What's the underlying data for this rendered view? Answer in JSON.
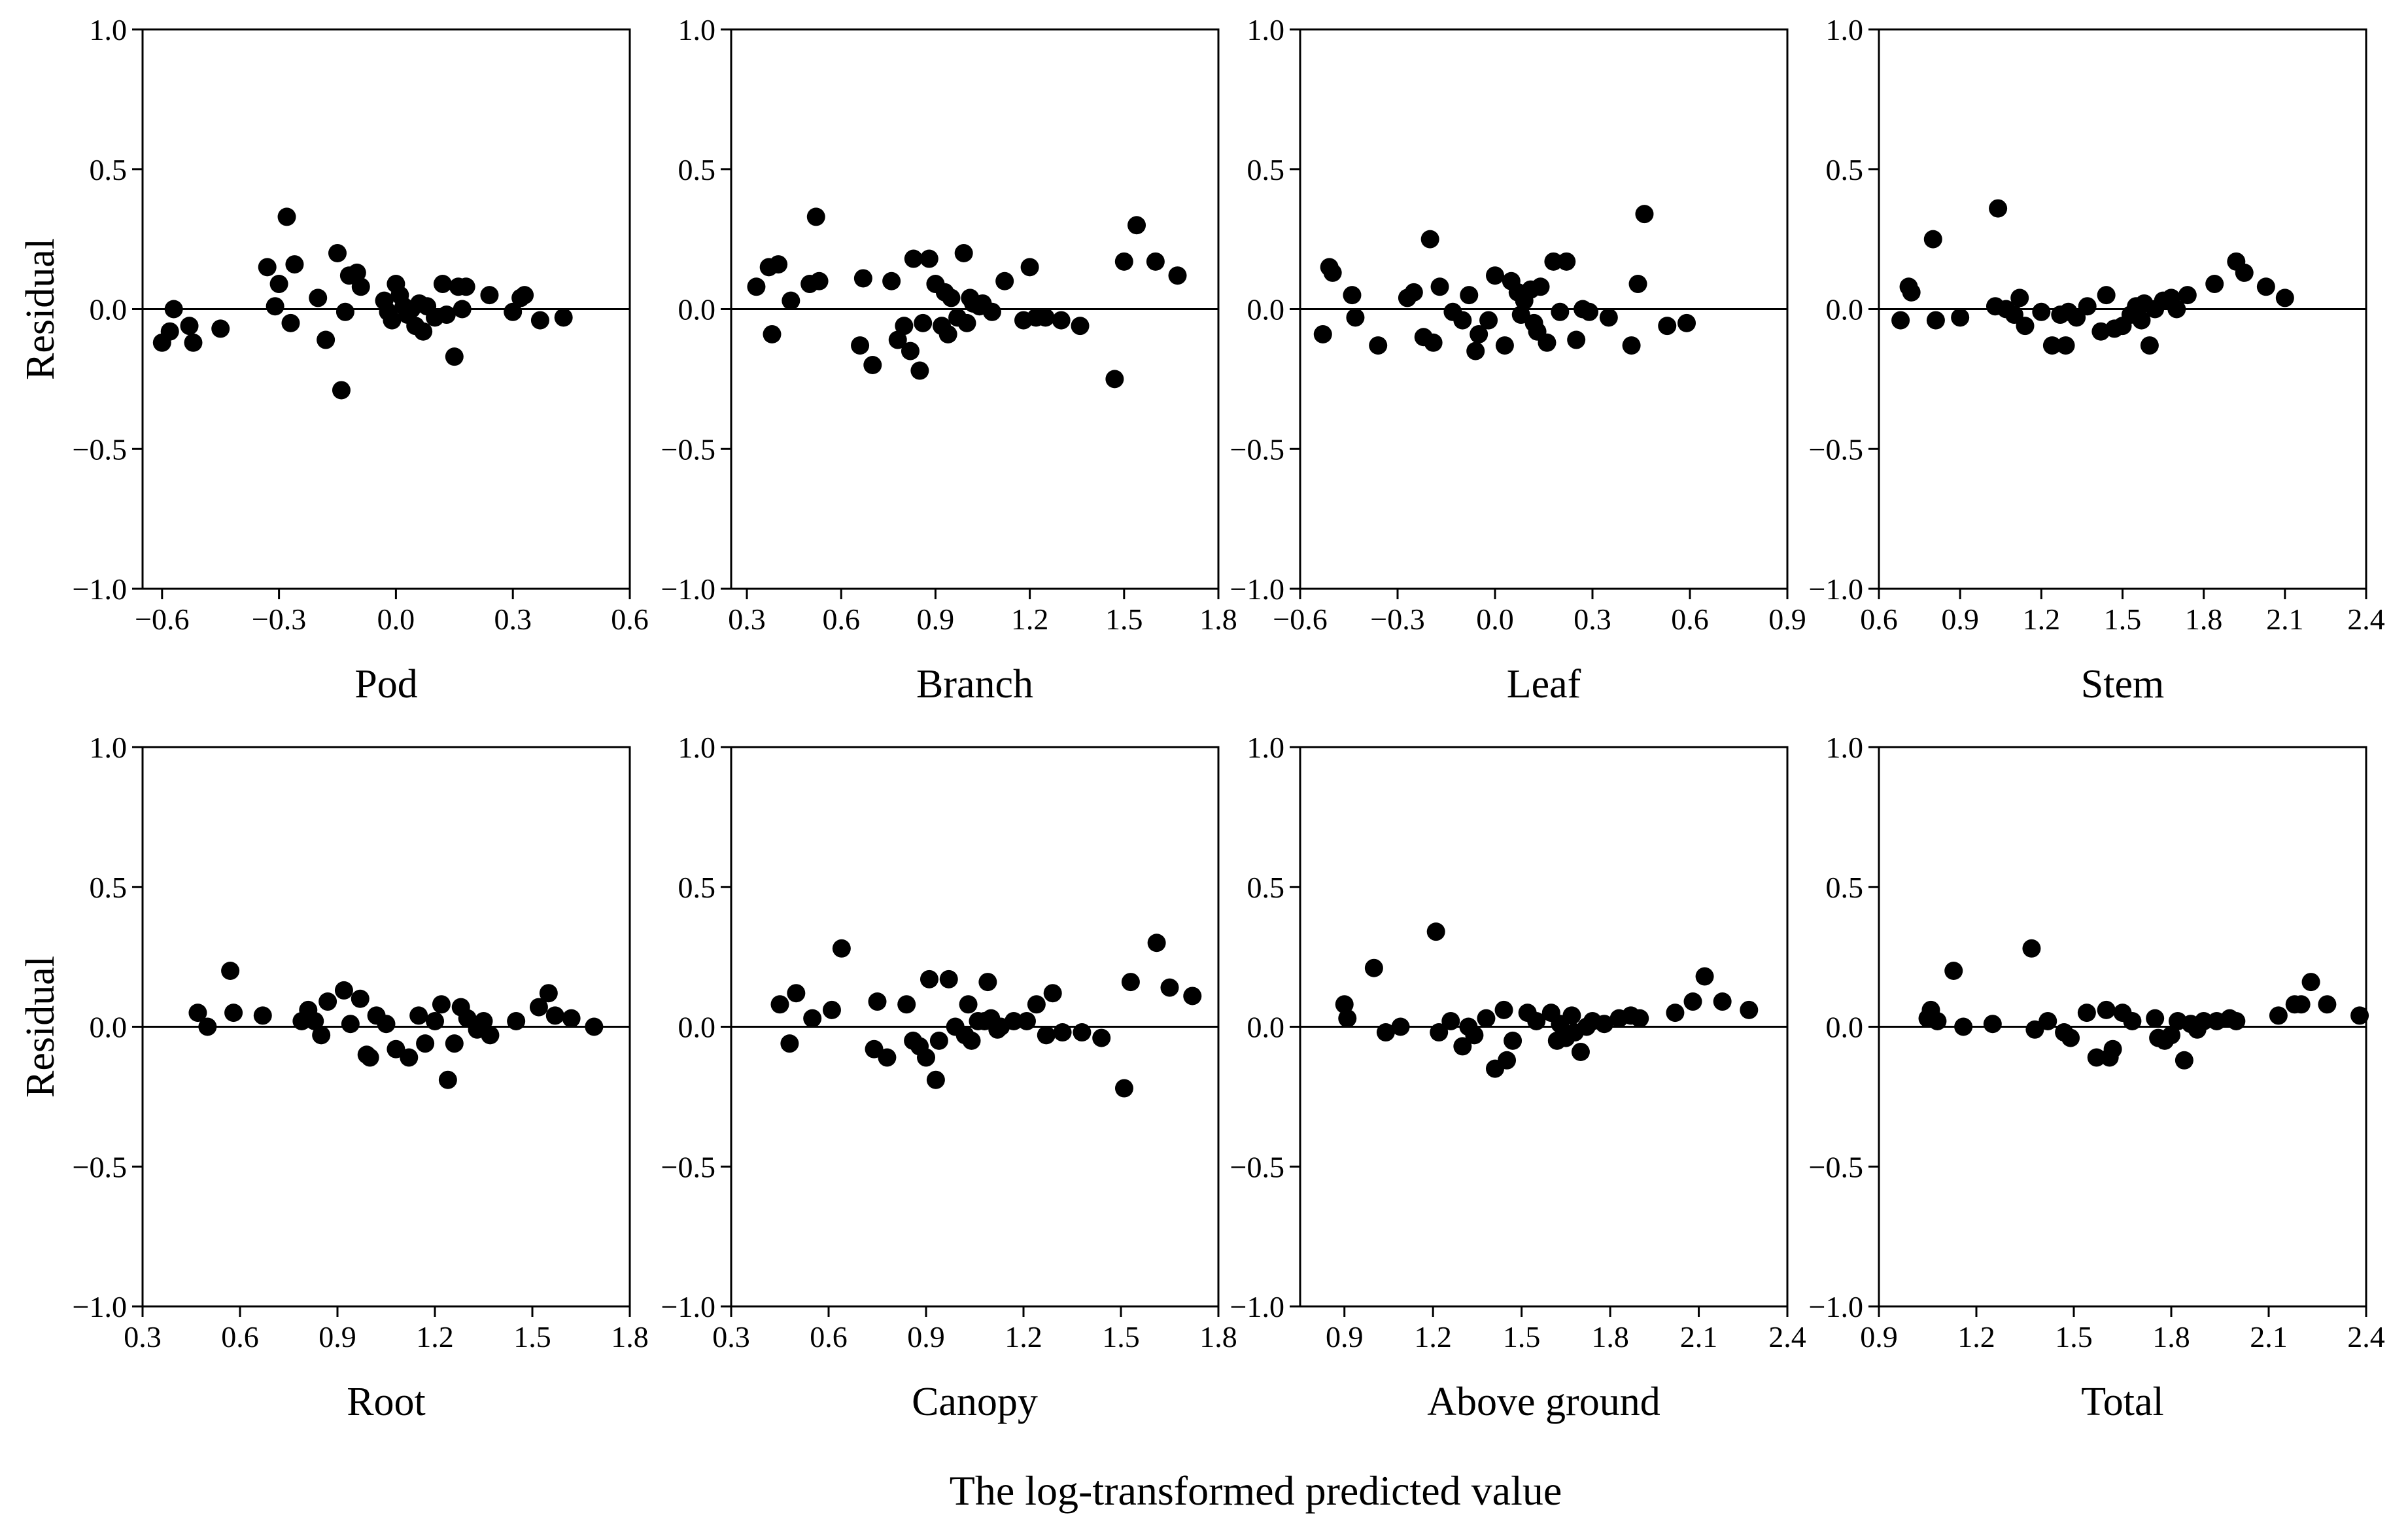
{
  "figure": {
    "xlabel": "The log-transformed predicted value",
    "ylabel": "Residual"
  },
  "chart_data": [
    {
      "type": "scatter",
      "name": "Pod",
      "title": "",
      "xlabel": "Pod",
      "ylabel": "Residual",
      "xlim": [
        -0.65,
        0.6
      ],
      "ylim": [
        -1.0,
        1.0
      ],
      "xticks": [
        -0.6,
        -0.3,
        0.0,
        0.3,
        0.6
      ],
      "xtick_labels": [
        "−0.6",
        "−0.3",
        "0.0",
        "0.3",
        "0.6"
      ],
      "yticks": [
        -1.0,
        -0.5,
        0.0,
        0.5,
        1.0
      ],
      "ytick_labels": [
        "−1.0",
        "−0.5",
        "0.0",
        "0.5",
        "1.0"
      ],
      "reference_line": 0,
      "x": [
        -0.6,
        -0.58,
        -0.57,
        -0.53,
        -0.52,
        -0.45,
        -0.33,
        -0.31,
        -0.3,
        -0.28,
        -0.27,
        -0.26,
        -0.2,
        -0.18,
        -0.15,
        -0.14,
        -0.13,
        -0.12,
        -0.1,
        -0.09,
        -0.03,
        -0.02,
        -0.01,
        0.0,
        0.01,
        0.02,
        0.03,
        0.04,
        0.05,
        0.06,
        0.07,
        0.08,
        0.1,
        0.12,
        0.13,
        0.15,
        0.16,
        0.17,
        0.18,
        0.24,
        0.3,
        0.32,
        0.33,
        0.37,
        0.43
      ],
      "y": [
        -0.12,
        -0.08,
        0.0,
        -0.06,
        -0.12,
        -0.07,
        0.15,
        0.01,
        0.09,
        0.33,
        -0.05,
        0.16,
        0.04,
        -0.11,
        0.2,
        -0.29,
        -0.01,
        0.12,
        0.13,
        0.08,
        0.03,
        -0.01,
        -0.04,
        0.09,
        0.05,
        0.01,
        -0.02,
        0.0,
        -0.06,
        0.02,
        -0.08,
        0.01,
        -0.03,
        0.09,
        -0.02,
        -0.17,
        0.08,
        0.0,
        0.08,
        0.05,
        -0.01,
        0.04,
        0.05,
        -0.04,
        -0.03
      ]
    },
    {
      "type": "scatter",
      "name": "Branch",
      "title": "",
      "xlabel": "Branch",
      "ylabel": "",
      "xlim": [
        0.25,
        1.8
      ],
      "ylim": [
        -1.0,
        1.0
      ],
      "xticks": [
        0.3,
        0.6,
        0.9,
        1.2,
        1.5,
        1.8
      ],
      "xtick_labels": [
        "0.3",
        "0.6",
        "0.9",
        "1.2",
        "1.5",
        "1.8"
      ],
      "yticks": [
        -1.0,
        -0.5,
        0.0,
        0.5,
        1.0
      ],
      "ytick_labels": [
        "−1.0",
        "−0.5",
        "0.0",
        "0.5",
        "1.0"
      ],
      "reference_line": 0,
      "x": [
        0.33,
        0.37,
        0.38,
        0.4,
        0.44,
        0.5,
        0.52,
        0.53,
        0.66,
        0.67,
        0.7,
        0.76,
        0.78,
        0.8,
        0.82,
        0.83,
        0.85,
        0.86,
        0.88,
        0.9,
        0.92,
        0.93,
        0.94,
        0.95,
        0.97,
        0.99,
        1.0,
        1.01,
        1.02,
        1.04,
        1.05,
        1.08,
        1.12,
        1.18,
        1.2,
        1.22,
        1.25,
        1.3,
        1.36,
        1.47,
        1.5,
        1.54,
        1.6,
        1.67
      ],
      "y": [
        0.08,
        0.15,
        -0.09,
        0.16,
        0.03,
        0.09,
        0.33,
        0.1,
        -0.13,
        0.11,
        -0.2,
        0.1,
        -0.11,
        -0.06,
        -0.15,
        0.18,
        -0.22,
        -0.05,
        0.18,
        0.09,
        -0.06,
        0.06,
        -0.09,
        0.04,
        -0.03,
        0.2,
        -0.05,
        0.04,
        0.02,
        0.01,
        0.02,
        -0.01,
        0.1,
        -0.04,
        0.15,
        -0.03,
        -0.03,
        -0.04,
        -0.06,
        -0.25,
        0.17,
        0.3,
        0.17,
        0.12
      ]
    },
    {
      "type": "scatter",
      "name": "Leaf",
      "title": "",
      "xlabel": "Leaf",
      "ylabel": "",
      "xlim": [
        -0.6,
        0.9
      ],
      "ylim": [
        -1.0,
        1.0
      ],
      "xticks": [
        -0.6,
        -0.3,
        0.0,
        0.3,
        0.6,
        0.9
      ],
      "xtick_labels": [
        "−0.6",
        "−0.3",
        "0.0",
        "0.3",
        "0.6",
        "0.9"
      ],
      "yticks": [
        -1.0,
        -0.5,
        0.0,
        0.5,
        1.0
      ],
      "ytick_labels": [
        "−1.0",
        "−0.5",
        "0.0",
        "0.5",
        "1.0"
      ],
      "reference_line": 0,
      "x": [
        -0.53,
        -0.51,
        -0.5,
        -0.44,
        -0.43,
        -0.36,
        -0.27,
        -0.25,
        -0.22,
        -0.2,
        -0.19,
        -0.17,
        -0.13,
        -0.1,
        -0.08,
        -0.06,
        -0.05,
        -0.02,
        0.0,
        0.03,
        0.05,
        0.07,
        0.08,
        0.09,
        0.11,
        0.12,
        0.13,
        0.14,
        0.16,
        0.18,
        0.2,
        0.22,
        0.25,
        0.27,
        0.29,
        0.35,
        0.42,
        0.44,
        0.46,
        0.53,
        0.59
      ],
      "y": [
        -0.09,
        0.15,
        0.13,
        0.05,
        -0.03,
        -0.13,
        0.04,
        0.06,
        -0.1,
        0.25,
        -0.12,
        0.08,
        -0.01,
        -0.04,
        0.05,
        -0.15,
        -0.09,
        -0.04,
        0.12,
        -0.13,
        0.1,
        0.06,
        -0.02,
        0.03,
        0.07,
        -0.05,
        -0.08,
        0.08,
        -0.12,
        0.17,
        -0.01,
        0.17,
        -0.11,
        0.0,
        -0.01,
        -0.03,
        -0.13,
        0.09,
        0.34,
        -0.06,
        -0.05
      ]
    },
    {
      "type": "scatter",
      "name": "Stem",
      "title": "",
      "xlabel": "Stem",
      "ylabel": "",
      "xlim": [
        0.6,
        2.4
      ],
      "ylim": [
        -1.0,
        1.0
      ],
      "xticks": [
        0.6,
        0.9,
        1.2,
        1.5,
        1.8,
        2.1,
        2.4
      ],
      "xtick_labels": [
        "0.6",
        "0.9",
        "1.2",
        "1.5",
        "1.8",
        "2.1",
        "2.4"
      ],
      "yticks": [
        -1.0,
        -0.5,
        0.0,
        0.5,
        1.0
      ],
      "ytick_labels": [
        "−1.0",
        "−0.5",
        "0.0",
        "0.5",
        "1.0"
      ],
      "reference_line": 0,
      "x": [
        0.68,
        0.71,
        0.72,
        0.8,
        0.81,
        0.9,
        1.03,
        1.04,
        1.07,
        1.1,
        1.12,
        1.14,
        1.2,
        1.24,
        1.27,
        1.29,
        1.3,
        1.33,
        1.37,
        1.42,
        1.44,
        1.47,
        1.5,
        1.53,
        1.55,
        1.57,
        1.58,
        1.6,
        1.62,
        1.65,
        1.68,
        1.7,
        1.74,
        1.84,
        1.92,
        1.95,
        2.03,
        2.1
      ],
      "y": [
        -0.04,
        0.08,
        0.06,
        0.25,
        -0.04,
        -0.03,
        0.01,
        0.36,
        0.0,
        -0.02,
        0.04,
        -0.06,
        -0.01,
        -0.13,
        -0.02,
        -0.13,
        -0.01,
        -0.03,
        0.01,
        -0.08,
        0.05,
        -0.07,
        -0.06,
        -0.02,
        0.01,
        -0.04,
        0.02,
        -0.13,
        0.0,
        0.03,
        0.04,
        0.0,
        0.05,
        0.09,
        0.17,
        0.13,
        0.08,
        0.04
      ]
    },
    {
      "type": "scatter",
      "name": "Root",
      "title": "",
      "xlabel": "Root",
      "ylabel": "Residual",
      "xlim": [
        0.3,
        1.8
      ],
      "ylim": [
        -1.0,
        1.0
      ],
      "xticks": [
        0.3,
        0.6,
        0.9,
        1.2,
        1.5,
        1.8
      ],
      "xtick_labels": [
        "0.3",
        "0.6",
        "0.9",
        "1.2",
        "1.5",
        "1.8"
      ],
      "yticks": [
        -1.0,
        -0.5,
        0.0,
        0.5,
        1.0
      ],
      "ytick_labels": [
        "−1.0",
        "−0.5",
        "0.0",
        "0.5",
        "1.0"
      ],
      "reference_line": 0,
      "x": [
        0.47,
        0.5,
        0.57,
        0.58,
        0.67,
        0.79,
        0.81,
        0.83,
        0.85,
        0.87,
        0.92,
        0.94,
        0.97,
        0.99,
        1.0,
        1.02,
        1.05,
        1.08,
        1.12,
        1.15,
        1.17,
        1.2,
        1.22,
        1.24,
        1.26,
        1.28,
        1.3,
        1.33,
        1.35,
        1.37,
        1.45,
        1.52,
        1.55,
        1.57,
        1.62,
        1.69
      ],
      "y": [
        0.05,
        0.0,
        0.2,
        0.05,
        0.04,
        0.02,
        0.06,
        0.02,
        -0.03,
        0.09,
        0.13,
        0.01,
        0.1,
        -0.1,
        -0.11,
        0.04,
        0.01,
        -0.08,
        -0.11,
        0.04,
        -0.06,
        0.02,
        0.08,
        -0.19,
        -0.06,
        0.07,
        0.03,
        -0.01,
        0.02,
        -0.03,
        0.02,
        0.07,
        0.12,
        0.04,
        0.03,
        0.0
      ]
    },
    {
      "type": "scatter",
      "name": "Canopy",
      "title": "",
      "xlabel": "Canopy",
      "ylabel": "",
      "xlim": [
        0.3,
        1.8
      ],
      "ylim": [
        -1.0,
        1.0
      ],
      "xticks": [
        0.3,
        0.6,
        0.9,
        1.2,
        1.5,
        1.8
      ],
      "xtick_labels": [
        "0.3",
        "0.6",
        "0.9",
        "1.2",
        "1.5",
        "1.8"
      ],
      "yticks": [
        -1.0,
        -0.5,
        0.0,
        0.5,
        1.0
      ],
      "ytick_labels": [
        "−1.0",
        "−0.5",
        "0.0",
        "0.5",
        "1.0"
      ],
      "reference_line": 0,
      "x": [
        0.45,
        0.48,
        0.5,
        0.55,
        0.61,
        0.64,
        0.74,
        0.75,
        0.78,
        0.84,
        0.86,
        0.88,
        0.9,
        0.91,
        0.93,
        0.94,
        0.97,
        0.99,
        1.02,
        1.03,
        1.04,
        1.06,
        1.08,
        1.09,
        1.1,
        1.12,
        1.13,
        1.17,
        1.21,
        1.24,
        1.27,
        1.29,
        1.32,
        1.38,
        1.44,
        1.51,
        1.53,
        1.61,
        1.65,
        1.72
      ],
      "y": [
        0.08,
        -0.06,
        0.12,
        0.03,
        0.06,
        0.28,
        -0.08,
        0.09,
        -0.11,
        0.08,
        -0.05,
        -0.07,
        -0.11,
        0.17,
        -0.19,
        -0.05,
        0.17,
        0.0,
        -0.03,
        0.08,
        -0.05,
        0.02,
        0.02,
        0.16,
        0.03,
        -0.01,
        0.0,
        0.02,
        0.02,
        0.08,
        -0.03,
        0.12,
        -0.02,
        -0.02,
        -0.04,
        -0.22,
        0.16,
        0.3,
        0.14,
        0.11
      ]
    },
    {
      "type": "scatter",
      "name": "Above ground",
      "title": "",
      "xlabel": "Above ground",
      "ylabel": "",
      "xlim": [
        0.75,
        2.4
      ],
      "ylim": [
        -1.0,
        1.0
      ],
      "xticks": [
        0.9,
        1.2,
        1.5,
        1.8,
        2.1,
        2.4
      ],
      "xtick_labels": [
        "0.9",
        "1.2",
        "1.5",
        "1.8",
        "2.1",
        "2.4"
      ],
      "yticks": [
        -1.0,
        -0.5,
        0.0,
        0.5,
        1.0
      ],
      "ytick_labels": [
        "−1.0",
        "−0.5",
        "0.0",
        "0.5",
        "1.0"
      ],
      "reference_line": 0,
      "x": [
        0.9,
        0.91,
        1.0,
        1.04,
        1.09,
        1.21,
        1.22,
        1.26,
        1.3,
        1.32,
        1.34,
        1.38,
        1.41,
        1.44,
        1.45,
        1.47,
        1.52,
        1.55,
        1.6,
        1.62,
        1.63,
        1.65,
        1.67,
        1.68,
        1.7,
        1.72,
        1.74,
        1.78,
        1.83,
        1.87,
        1.9,
        2.02,
        2.08,
        2.12,
        2.18,
        2.27
      ],
      "y": [
        0.08,
        0.03,
        0.21,
        -0.02,
        0.0,
        0.34,
        -0.02,
        0.02,
        -0.07,
        0.0,
        -0.03,
        0.03,
        -0.15,
        0.06,
        -0.12,
        -0.05,
        0.05,
        0.02,
        0.05,
        -0.05,
        0.01,
        -0.04,
        0.04,
        -0.02,
        -0.09,
        0.0,
        0.02,
        0.01,
        0.03,
        0.04,
        0.03,
        0.05,
        0.09,
        0.18,
        0.09,
        0.06
      ]
    },
    {
      "type": "scatter",
      "name": "Total",
      "title": "",
      "xlabel": "Total",
      "ylabel": "",
      "xlim": [
        0.9,
        2.4
      ],
      "ylim": [
        -1.0,
        1.0
      ],
      "xticks": [
        0.9,
        1.2,
        1.5,
        1.8,
        2.1,
        2.4
      ],
      "xtick_labels": [
        "0.9",
        "1.2",
        "1.5",
        "1.8",
        "2.1",
        "2.4"
      ],
      "yticks": [
        -1.0,
        -0.5,
        0.0,
        0.5,
        1.0
      ],
      "ytick_labels": [
        "−1.0",
        "−0.5",
        "0.0",
        "0.5",
        "1.0"
      ],
      "reference_line": 0,
      "x": [
        1.05,
        1.06,
        1.08,
        1.13,
        1.16,
        1.25,
        1.37,
        1.38,
        1.42,
        1.47,
        1.49,
        1.54,
        1.57,
        1.6,
        1.61,
        1.62,
        1.65,
        1.68,
        1.75,
        1.76,
        1.78,
        1.8,
        1.82,
        1.84,
        1.86,
        1.88,
        1.9,
        1.94,
        1.98,
        2.0,
        2.13,
        2.18,
        2.2,
        2.23,
        2.28,
        2.38
      ],
      "y": [
        0.03,
        0.06,
        0.02,
        0.2,
        0.0,
        0.01,
        0.28,
        -0.01,
        0.02,
        -0.02,
        -0.04,
        0.05,
        -0.11,
        0.06,
        -0.11,
        -0.08,
        0.05,
        0.02,
        0.03,
        -0.04,
        -0.05,
        -0.03,
        0.02,
        -0.12,
        0.01,
        -0.01,
        0.02,
        0.02,
        0.03,
        0.02,
        0.04,
        0.08,
        0.08,
        0.16,
        0.08,
        0.04
      ]
    }
  ]
}
